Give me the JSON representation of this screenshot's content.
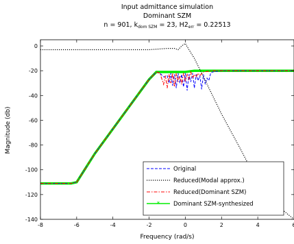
{
  "chart_data": {
    "type": "line",
    "title": "Input admittance simulation",
    "subtitle": "Dominant SZM",
    "subtitle2_parts": {
      "a": "n = 901, k",
      "sub1": "dom SZM",
      "b": " = 23, H2",
      "sub2": "err",
      "c": " = 0.22513"
    },
    "xlabel": "Frequency (rad/s)",
    "ylabel": "Magnitude (db)",
    "xlim": [
      -8,
      6
    ],
    "ylim": [
      -140,
      5
    ],
    "xticks": [
      "-8",
      "-6",
      "-4",
      "-2",
      "0",
      "2",
      "4",
      "6"
    ],
    "yticks": [
      "0",
      "-20",
      "-40",
      "-60",
      "-80",
      "-100",
      "-120",
      "-140"
    ],
    "grid": false,
    "legend_position": "bottom-right",
    "series": [
      {
        "name": "Original",
        "color": "#0000ff",
        "style": "dashed",
        "x": [
          -8,
          -6.3,
          -6,
          -5,
          -4,
          -3,
          -2,
          -1.6,
          -1.4,
          -1.2,
          -1.0,
          -0.9,
          -0.8,
          -0.7,
          -0.6,
          -0.5,
          -0.4,
          -0.3,
          -0.2,
          -0.1,
          0,
          0.1,
          0.2,
          0.3,
          0.4,
          0.5,
          0.6,
          0.7,
          0.8,
          0.9,
          1.0,
          1.1,
          1.2,
          1.3,
          1.4,
          1.5,
          2,
          3,
          4,
          5,
          6
        ],
        "y": [
          -111,
          -111,
          -110,
          -87,
          -67,
          -47,
          -27,
          -21,
          -22,
          -25,
          -24,
          -30,
          -22,
          -32,
          -23,
          -34,
          -22,
          -30,
          -23,
          -33,
          -22,
          -36,
          -23,
          -29,
          -22,
          -34,
          -23,
          -28,
          -24,
          -35,
          -23,
          -31,
          -26,
          -28,
          -22,
          -21,
          -20,
          -20,
          -20,
          -20,
          -20
        ]
      },
      {
        "name": "Reduced(Modal approx.)",
        "color": "#000000",
        "style": "dotted",
        "x": [
          -8,
          -6,
          -4,
          -3,
          -2,
          -1.5,
          -1,
          -0.6,
          -0.4,
          -0.2,
          0,
          0.2,
          0.5,
          1,
          2,
          3,
          4,
          5,
          6
        ],
        "y": [
          -3,
          -3,
          -3,
          -3,
          -3,
          -2.5,
          -2,
          -2,
          -3,
          0,
          2,
          -3,
          -10,
          -25,
          -55,
          -82,
          -110,
          -128,
          -140
        ]
      },
      {
        "name": "Reduced(Dominant SZM)",
        "color": "#ff0000",
        "style": "dashdot",
        "x": [
          -8,
          -6.3,
          -6,
          -5,
          -4,
          -3,
          -2,
          -1.6,
          -1.4,
          -1.2,
          -1.1,
          -1.0,
          -0.9,
          -0.8,
          -0.7,
          -0.6,
          -0.5,
          -0.4,
          -0.3,
          -0.2,
          -0.1,
          0,
          0.1,
          0.2,
          0.3,
          0.4,
          0.5,
          0.6,
          0.7,
          0.8,
          1.0,
          1.5,
          2,
          3,
          4,
          5,
          6
        ],
        "y": [
          -111,
          -111,
          -110,
          -87,
          -67,
          -47,
          -27,
          -21,
          -22,
          -31,
          -24,
          -34,
          -23,
          -30,
          -22,
          -33,
          -22,
          -29,
          -24,
          -31,
          -22,
          -28,
          -23,
          -27,
          -21,
          -26,
          -23,
          -25,
          -22,
          -24,
          -21,
          -20,
          -20,
          -20,
          -20,
          -20,
          -20
        ]
      },
      {
        "name": "Dominant SZM-synthesized",
        "color": "#00ee00",
        "style": "solid-marker",
        "x": [
          -8,
          -6.3,
          -6,
          -5,
          -4,
          -3,
          -2,
          -1.6,
          -1.4,
          -1.2,
          -1.0,
          -0.8,
          -0.6,
          -0.4,
          -0.2,
          0,
          0.5,
          1,
          2,
          3,
          4,
          5,
          6
        ],
        "y": [
          -111,
          -111,
          -110,
          -87,
          -67,
          -47,
          -27,
          -21,
          -21,
          -21,
          -21,
          -21,
          -21,
          -21,
          -21,
          -21,
          -20,
          -20,
          -20,
          -20,
          -20,
          -20,
          -20
        ]
      }
    ]
  }
}
